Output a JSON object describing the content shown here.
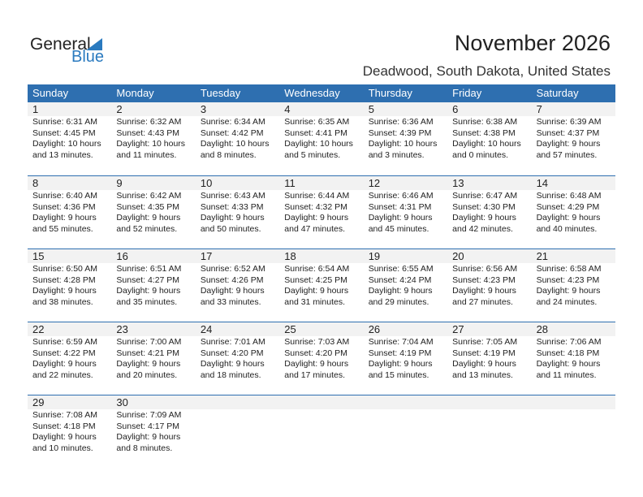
{
  "logo": {
    "text1": "General",
    "text2": "Blue"
  },
  "header": {
    "title": "November 2026",
    "location": "Deadwood, South Dakota, United States"
  },
  "weekdays": [
    "Sunday",
    "Monday",
    "Tuesday",
    "Wednesday",
    "Thursday",
    "Friday",
    "Saturday"
  ],
  "days": [
    {
      "date": "1",
      "sunrise": "Sunrise: 6:31 AM",
      "sunset": "Sunset: 4:45 PM",
      "daylight1": "Daylight: 10 hours",
      "daylight2": "and 13 minutes."
    },
    {
      "date": "2",
      "sunrise": "Sunrise: 6:32 AM",
      "sunset": "Sunset: 4:43 PM",
      "daylight1": "Daylight: 10 hours",
      "daylight2": "and 11 minutes."
    },
    {
      "date": "3",
      "sunrise": "Sunrise: 6:34 AM",
      "sunset": "Sunset: 4:42 PM",
      "daylight1": "Daylight: 10 hours",
      "daylight2": "and 8 minutes."
    },
    {
      "date": "4",
      "sunrise": "Sunrise: 6:35 AM",
      "sunset": "Sunset: 4:41 PM",
      "daylight1": "Daylight: 10 hours",
      "daylight2": "and 5 minutes."
    },
    {
      "date": "5",
      "sunrise": "Sunrise: 6:36 AM",
      "sunset": "Sunset: 4:39 PM",
      "daylight1": "Daylight: 10 hours",
      "daylight2": "and 3 minutes."
    },
    {
      "date": "6",
      "sunrise": "Sunrise: 6:38 AM",
      "sunset": "Sunset: 4:38 PM",
      "daylight1": "Daylight: 10 hours",
      "daylight2": "and 0 minutes."
    },
    {
      "date": "7",
      "sunrise": "Sunrise: 6:39 AM",
      "sunset": "Sunset: 4:37 PM",
      "daylight1": "Daylight: 9 hours",
      "daylight2": "and 57 minutes."
    },
    {
      "date": "8",
      "sunrise": "Sunrise: 6:40 AM",
      "sunset": "Sunset: 4:36 PM",
      "daylight1": "Daylight: 9 hours",
      "daylight2": "and 55 minutes."
    },
    {
      "date": "9",
      "sunrise": "Sunrise: 6:42 AM",
      "sunset": "Sunset: 4:35 PM",
      "daylight1": "Daylight: 9 hours",
      "daylight2": "and 52 minutes."
    },
    {
      "date": "10",
      "sunrise": "Sunrise: 6:43 AM",
      "sunset": "Sunset: 4:33 PM",
      "daylight1": "Daylight: 9 hours",
      "daylight2": "and 50 minutes."
    },
    {
      "date": "11",
      "sunrise": "Sunrise: 6:44 AM",
      "sunset": "Sunset: 4:32 PM",
      "daylight1": "Daylight: 9 hours",
      "daylight2": "and 47 minutes."
    },
    {
      "date": "12",
      "sunrise": "Sunrise: 6:46 AM",
      "sunset": "Sunset: 4:31 PM",
      "daylight1": "Daylight: 9 hours",
      "daylight2": "and 45 minutes."
    },
    {
      "date": "13",
      "sunrise": "Sunrise: 6:47 AM",
      "sunset": "Sunset: 4:30 PM",
      "daylight1": "Daylight: 9 hours",
      "daylight2": "and 42 minutes."
    },
    {
      "date": "14",
      "sunrise": "Sunrise: 6:48 AM",
      "sunset": "Sunset: 4:29 PM",
      "daylight1": "Daylight: 9 hours",
      "daylight2": "and 40 minutes."
    },
    {
      "date": "15",
      "sunrise": "Sunrise: 6:50 AM",
      "sunset": "Sunset: 4:28 PM",
      "daylight1": "Daylight: 9 hours",
      "daylight2": "and 38 minutes."
    },
    {
      "date": "16",
      "sunrise": "Sunrise: 6:51 AM",
      "sunset": "Sunset: 4:27 PM",
      "daylight1": "Daylight: 9 hours",
      "daylight2": "and 35 minutes."
    },
    {
      "date": "17",
      "sunrise": "Sunrise: 6:52 AM",
      "sunset": "Sunset: 4:26 PM",
      "daylight1": "Daylight: 9 hours",
      "daylight2": "and 33 minutes."
    },
    {
      "date": "18",
      "sunrise": "Sunrise: 6:54 AM",
      "sunset": "Sunset: 4:25 PM",
      "daylight1": "Daylight: 9 hours",
      "daylight2": "and 31 minutes."
    },
    {
      "date": "19",
      "sunrise": "Sunrise: 6:55 AM",
      "sunset": "Sunset: 4:24 PM",
      "daylight1": "Daylight: 9 hours",
      "daylight2": "and 29 minutes."
    },
    {
      "date": "20",
      "sunrise": "Sunrise: 6:56 AM",
      "sunset": "Sunset: 4:23 PM",
      "daylight1": "Daylight: 9 hours",
      "daylight2": "and 27 minutes."
    },
    {
      "date": "21",
      "sunrise": "Sunrise: 6:58 AM",
      "sunset": "Sunset: 4:23 PM",
      "daylight1": "Daylight: 9 hours",
      "daylight2": "and 24 minutes."
    },
    {
      "date": "22",
      "sunrise": "Sunrise: 6:59 AM",
      "sunset": "Sunset: 4:22 PM",
      "daylight1": "Daylight: 9 hours",
      "daylight2": "and 22 minutes."
    },
    {
      "date": "23",
      "sunrise": "Sunrise: 7:00 AM",
      "sunset": "Sunset: 4:21 PM",
      "daylight1": "Daylight: 9 hours",
      "daylight2": "and 20 minutes."
    },
    {
      "date": "24",
      "sunrise": "Sunrise: 7:01 AM",
      "sunset": "Sunset: 4:20 PM",
      "daylight1": "Daylight: 9 hours",
      "daylight2": "and 18 minutes."
    },
    {
      "date": "25",
      "sunrise": "Sunrise: 7:03 AM",
      "sunset": "Sunset: 4:20 PM",
      "daylight1": "Daylight: 9 hours",
      "daylight2": "and 17 minutes."
    },
    {
      "date": "26",
      "sunrise": "Sunrise: 7:04 AM",
      "sunset": "Sunset: 4:19 PM",
      "daylight1": "Daylight: 9 hours",
      "daylight2": "and 15 minutes."
    },
    {
      "date": "27",
      "sunrise": "Sunrise: 7:05 AM",
      "sunset": "Sunset: 4:19 PM",
      "daylight1": "Daylight: 9 hours",
      "daylight2": "and 13 minutes."
    },
    {
      "date": "28",
      "sunrise": "Sunrise: 7:06 AM",
      "sunset": "Sunset: 4:18 PM",
      "daylight1": "Daylight: 9 hours",
      "daylight2": "and 11 minutes."
    },
    {
      "date": "29",
      "sunrise": "Sunrise: 7:08 AM",
      "sunset": "Sunset: 4:18 PM",
      "daylight1": "Daylight: 9 hours",
      "daylight2": "and 10 minutes."
    },
    {
      "date": "30",
      "sunrise": "Sunrise: 7:09 AM",
      "sunset": "Sunset: 4:17 PM",
      "daylight1": "Daylight: 9 hours",
      "daylight2": "and 8 minutes."
    }
  ]
}
